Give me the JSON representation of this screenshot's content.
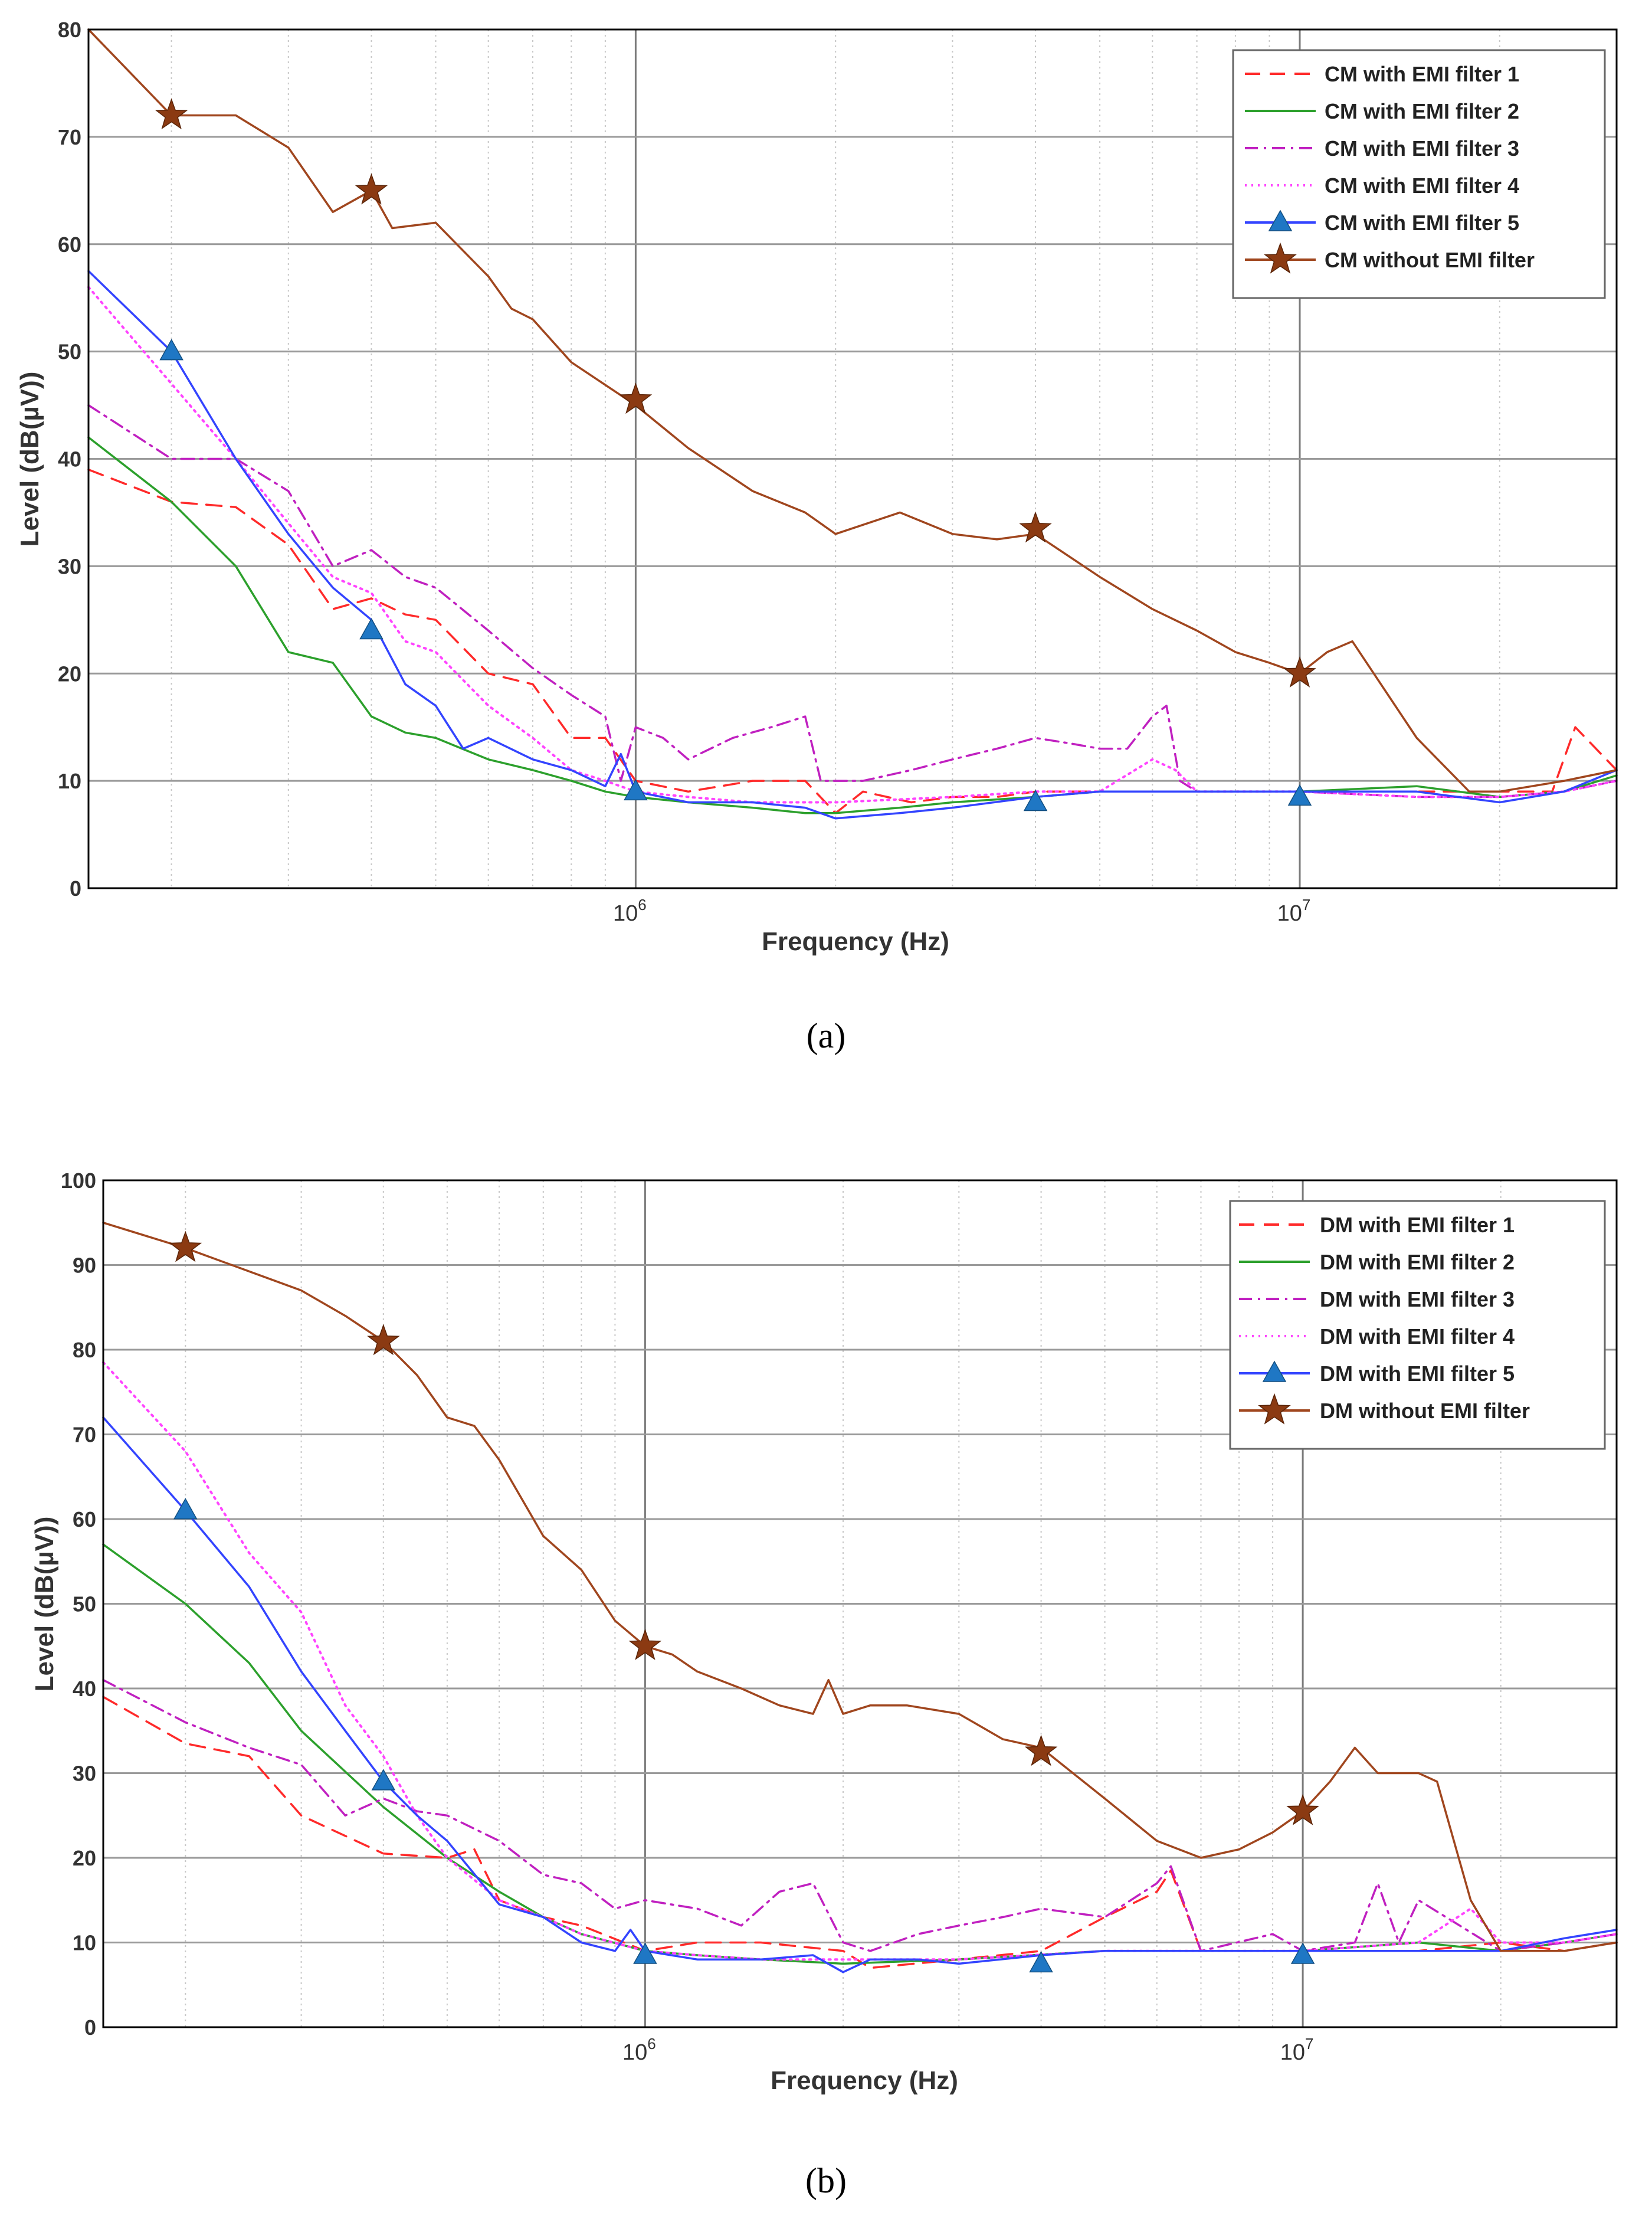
{
  "figure": {
    "caption_a": "(a)",
    "caption_b": "(b)"
  },
  "colors": {
    "filter1": "#ff2a2a",
    "filter2": "#2ca02c",
    "filter3": "#c020c0",
    "filter4": "#ff44ff",
    "filter5": "#3344ff",
    "nofilter": "#a0461e",
    "triangle_marker": "#1f77c4",
    "star_marker": "#8b3a12"
  },
  "chart_data": [
    {
      "id": "a",
      "type": "line",
      "xscale": "log",
      "xlim": [
        150000,
        30000000
      ],
      "ylim": [
        0,
        80
      ],
      "yticks": [
        0,
        10,
        20,
        30,
        40,
        50,
        60,
        70,
        80
      ],
      "xticks": [
        {
          "value": 1000000,
          "base": "10",
          "exp": "6"
        },
        {
          "value": 10000000,
          "base": "10",
          "exp": "7"
        }
      ],
      "xlabel": "Frequency (Hz)",
      "ylabel": "Level (dB(µV))",
      "grid": true,
      "legend_position": "top-right",
      "series": [
        {
          "name": "CM with EMI filter 1",
          "style": "dashed",
          "color_key": "filter1",
          "marker": "",
          "x": [
            150000,
            200000,
            250000,
            300000,
            350000,
            400000,
            450000,
            500000,
            600000,
            700000,
            800000,
            900000,
            1000000,
            1200000,
            1500000,
            1800000,
            2000000,
            2200000,
            2600000,
            3000000,
            3500000,
            4000000,
            5000000,
            6000000,
            7000000,
            8000000,
            10000000,
            12000000,
            15000000,
            18000000,
            20000000,
            24000000,
            26000000,
            30000000
          ],
          "y": [
            39,
            36,
            35.5,
            32,
            26,
            27,
            25.5,
            25,
            20,
            19,
            14,
            14,
            10,
            9,
            10,
            10,
            7,
            9,
            8,
            8.5,
            8.5,
            9,
            9,
            9,
            9,
            9,
            9,
            9,
            9,
            9,
            9,
            9,
            15,
            11
          ]
        },
        {
          "name": "CM with EMI filter 2",
          "style": "solid",
          "color_key": "filter2",
          "marker": "",
          "x": [
            150000,
            200000,
            250000,
            300000,
            350000,
            400000,
            450000,
            500000,
            600000,
            700000,
            800000,
            900000,
            1000000,
            1200000,
            1500000,
            1800000,
            2000000,
            2500000,
            3000000,
            4000000,
            5000000,
            7000000,
            10000000,
            15000000,
            20000000,
            25000000,
            30000000
          ],
          "y": [
            42,
            36,
            30,
            22,
            21,
            16,
            14.5,
            14,
            12,
            11,
            10,
            9,
            8.5,
            8,
            7.5,
            7,
            7,
            7.5,
            8,
            8.5,
            9,
            9,
            9,
            9.5,
            8.5,
            9,
            10.5
          ]
        },
        {
          "name": "CM with EMI filter 3",
          "style": "dashdot",
          "color_key": "filter3",
          "marker": "",
          "x": [
            150000,
            200000,
            250000,
            300000,
            350000,
            400000,
            450000,
            500000,
            600000,
            700000,
            800000,
            900000,
            950000,
            1000000,
            1100000,
            1200000,
            1400000,
            1600000,
            1800000,
            1900000,
            2200000,
            2600000,
            3000000,
            3500000,
            4000000,
            4500000,
            5000000,
            5500000,
            6000000,
            6300000,
            6600000,
            7000000,
            8000000,
            10000000,
            15000000,
            20000000,
            25000000,
            30000000
          ],
          "y": [
            45,
            40,
            40,
            37,
            30,
            31.5,
            29,
            28,
            24,
            20.5,
            18,
            16,
            10,
            15,
            14,
            12,
            14,
            15,
            16,
            10,
            10,
            11,
            12,
            13,
            14,
            13.5,
            13,
            13,
            16,
            17,
            10,
            9,
            9,
            9,
            8.5,
            8.5,
            9,
            10
          ]
        },
        {
          "name": "CM with EMI filter 4",
          "style": "dotted",
          "color_key": "filter4",
          "marker": "",
          "x": [
            150000,
            200000,
            250000,
            300000,
            350000,
            400000,
            450000,
            500000,
            600000,
            700000,
            800000,
            900000,
            1000000,
            1200000,
            1500000,
            2000000,
            3000000,
            4000000,
            5000000,
            6000000,
            6500000,
            7000000,
            10000000,
            15000000,
            20000000,
            25000000,
            30000000
          ],
          "y": [
            56,
            47,
            40,
            34,
            29,
            27.5,
            23,
            22,
            17,
            14,
            11,
            10,
            9,
            8.5,
            8,
            8,
            8.5,
            9,
            9,
            12,
            11,
            9,
            9,
            8.5,
            8.5,
            9,
            10
          ]
        },
        {
          "name": "CM with EMI filter 5",
          "style": "solid",
          "color_key": "filter5",
          "marker": "triangle",
          "x": [
            150000,
            200000,
            250000,
            300000,
            350000,
            400000,
            450000,
            500000,
            550000,
            600000,
            700000,
            800000,
            900000,
            950000,
            1000000,
            1200000,
            1500000,
            1800000,
            2000000,
            2500000,
            3000000,
            4000000,
            5000000,
            7000000,
            10000000,
            15000000,
            20000000,
            25000000,
            30000000
          ],
          "y": [
            57.5,
            50,
            40,
            33,
            28,
            25,
            19,
            17,
            13,
            14,
            12,
            11,
            9.5,
            12.5,
            9,
            8,
            8,
            7.5,
            6.5,
            7,
            7.5,
            8.5,
            9,
            9,
            9,
            9,
            8,
            9,
            11
          ],
          "markers_x": [
            200000,
            400000,
            1000000,
            4000000,
            10000000
          ],
          "markers_y": [
            50,
            24,
            9,
            8,
            8.5
          ]
        },
        {
          "name": "CM without EMI filter",
          "style": "solid",
          "color_key": "nofilter",
          "marker": "star",
          "x": [
            150000,
            200000,
            250000,
            300000,
            350000,
            400000,
            430000,
            500000,
            600000,
            650000,
            700000,
            800000,
            1000000,
            1200000,
            1500000,
            1800000,
            2000000,
            2500000,
            3000000,
            3500000,
            4000000,
            5000000,
            6000000,
            7000000,
            8000000,
            9000000,
            10000000,
            11000000,
            12000000,
            15000000,
            18000000,
            20000000,
            25000000,
            30000000
          ],
          "y": [
            80,
            72,
            72,
            69,
            63,
            65,
            61.5,
            62,
            57,
            54,
            53,
            49,
            45,
            41,
            37,
            35,
            33,
            35,
            33,
            32.5,
            33,
            29,
            26,
            24,
            22,
            21,
            20,
            22,
            23,
            14,
            9,
            9,
            10,
            11
          ],
          "markers_x": [
            200000,
            400000,
            1000000,
            4000000,
            10000000
          ],
          "markers_y": [
            72,
            65,
            45.5,
            33.5,
            20
          ]
        }
      ]
    },
    {
      "id": "b",
      "type": "line",
      "xscale": "log",
      "xlim": [
        150000,
        30000000
      ],
      "ylim": [
        0,
        100
      ],
      "yticks": [
        0,
        10,
        20,
        30,
        40,
        50,
        60,
        70,
        80,
        90,
        100
      ],
      "xticks": [
        {
          "value": 1000000,
          "base": "10",
          "exp": "6"
        },
        {
          "value": 10000000,
          "base": "10",
          "exp": "7"
        }
      ],
      "xlabel": "Frequency (Hz)",
      "ylabel": "Level (dB(µV))",
      "grid": true,
      "legend_position": "top-right",
      "series": [
        {
          "name": "DM with EMI filter 1",
          "style": "dashed",
          "color_key": "filter1",
          "marker": "",
          "x": [
            150000,
            200000,
            250000,
            300000,
            400000,
            500000,
            550000,
            600000,
            700000,
            800000,
            1000000,
            1200000,
            1500000,
            2000000,
            2200000,
            3000000,
            4000000,
            5000000,
            6000000,
            6300000,
            7000000,
            10000000,
            15000000,
            20000000,
            25000000,
            30000000
          ],
          "y": [
            39,
            33.5,
            32,
            25,
            20.5,
            20,
            21,
            15,
            13,
            12,
            9,
            10,
            10,
            9,
            7,
            8,
            9,
            13,
            16,
            18.5,
            9,
            9,
            9,
            10,
            9,
            10
          ]
        },
        {
          "name": "DM with EMI filter 2",
          "style": "solid",
          "color_key": "filter2",
          "marker": "",
          "x": [
            150000,
            200000,
            250000,
            300000,
            400000,
            500000,
            600000,
            700000,
            800000,
            1000000,
            1200000,
            1500000,
            2000000,
            3000000,
            5000000,
            10000000,
            15000000,
            20000000,
            25000000,
            30000000
          ],
          "y": [
            57,
            50,
            43,
            35,
            26,
            20,
            16,
            13,
            11,
            9,
            8.5,
            8,
            7.5,
            8,
            9,
            9,
            10,
            9,
            10,
            11
          ]
        },
        {
          "name": "DM with EMI filter 3",
          "style": "dashdot",
          "color_key": "filter3",
          "marker": "",
          "x": [
            150000,
            200000,
            250000,
            300000,
            350000,
            400000,
            450000,
            500000,
            600000,
            700000,
            800000,
            900000,
            1000000,
            1200000,
            1400000,
            1600000,
            1800000,
            2000000,
            2200000,
            2600000,
            3000000,
            3500000,
            4000000,
            5000000,
            6000000,
            6300000,
            7000000,
            9000000,
            10000000,
            12000000,
            13000000,
            14000000,
            15000000,
            20000000,
            25000000,
            30000000
          ],
          "y": [
            41,
            36,
            33,
            31,
            25,
            27,
            25.5,
            25,
            22,
            18,
            17,
            14,
            15,
            14,
            12,
            16,
            17,
            10,
            9,
            11,
            12,
            13,
            14,
            13,
            17,
            19,
            9,
            11,
            9,
            10,
            17,
            10,
            15,
            9,
            10,
            11
          ]
        },
        {
          "name": "DM with EMI filter 4",
          "style": "dotted",
          "color_key": "filter4",
          "marker": "",
          "x": [
            150000,
            200000,
            250000,
            300000,
            350000,
            400000,
            450000,
            500000,
            600000,
            700000,
            800000,
            1000000,
            1200000,
            1500000,
            2000000,
            3000000,
            5000000,
            10000000,
            15000000,
            18000000,
            20000000,
            25000000,
            30000000
          ],
          "y": [
            78.5,
            68,
            56,
            49,
            38,
            32,
            25,
            20,
            15,
            13,
            11,
            9,
            8.5,
            8,
            8,
            8,
            9,
            9,
            10,
            14,
            10,
            10,
            11
          ]
        },
        {
          "name": "DM with EMI filter 5",
          "style": "solid",
          "color_key": "filter5",
          "marker": "triangle",
          "x": [
            150000,
            200000,
            250000,
            300000,
            350000,
            400000,
            450000,
            500000,
            600000,
            700000,
            800000,
            900000,
            950000,
            1000000,
            1200000,
            1500000,
            1800000,
            2000000,
            2200000,
            2600000,
            3000000,
            4000000,
            5000000,
            10000000,
            15000000,
            20000000,
            25000000,
            30000000
          ],
          "y": [
            72,
            61,
            52,
            42,
            35,
            29,
            25,
            22,
            14.5,
            13,
            10,
            9,
            11.5,
            9,
            8,
            8,
            8.5,
            6.5,
            8,
            8,
            7.5,
            8.5,
            9,
            9,
            9,
            9,
            10.5,
            11.5
          ],
          "markers_x": [
            200000,
            400000,
            1000000,
            4000000,
            10000000
          ],
          "markers_y": [
            61,
            29,
            8.5,
            7.5,
            8.5
          ]
        },
        {
          "name": "DM without EMI filter",
          "style": "solid",
          "color_key": "nofilter",
          "marker": "star",
          "x": [
            150000,
            200000,
            300000,
            350000,
            400000,
            450000,
            500000,
            550000,
            600000,
            700000,
            800000,
            900000,
            1000000,
            1100000,
            1200000,
            1400000,
            1600000,
            1800000,
            1900000,
            2000000,
            2200000,
            2500000,
            3000000,
            3500000,
            4000000,
            5000000,
            6000000,
            7000000,
            8000000,
            9000000,
            10000000,
            11000000,
            12000000,
            13000000,
            15000000,
            16000000,
            18000000,
            20000000,
            25000000,
            30000000
          ],
          "y": [
            95,
            92,
            87,
            84,
            81,
            77,
            72,
            71,
            67,
            58,
            54,
            48,
            45,
            44,
            42,
            40,
            38,
            37,
            41,
            37,
            38,
            38,
            37,
            34,
            33,
            27,
            22,
            20,
            21,
            23,
            25.5,
            29,
            33,
            30,
            30,
            29,
            15,
            9,
            9,
            10
          ],
          "markers_x": [
            200000,
            400000,
            1000000,
            4000000,
            10000000
          ],
          "markers_y": [
            92,
            81,
            45,
            32.5,
            25.5
          ]
        }
      ]
    }
  ]
}
